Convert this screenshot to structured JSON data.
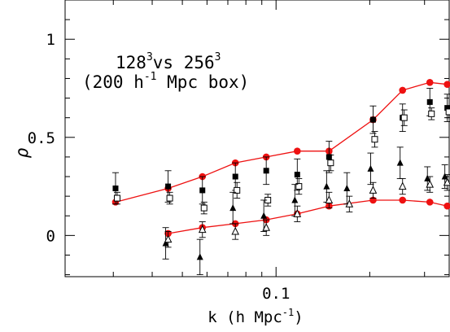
{
  "chart_data": {
    "type": "scatter",
    "x_scale": "log",
    "xlabel": "k (h Mpc",
    "xlabel_sup": "-1",
    "xlabel_end": ")",
    "ylabel": "ρ",
    "xlim": [
      0.021,
      0.36
    ],
    "ylim": [
      -0.21,
      1.2
    ],
    "x_ticks": [
      {
        "value": 0.1,
        "label": "0.1"
      }
    ],
    "y_ticks": [
      {
        "value": 0,
        "label": "0"
      },
      {
        "value": 0.5,
        "label": "0.5"
      },
      {
        "value": 1,
        "label": "1"
      }
    ],
    "annotation": {
      "line1": {
        "base1": "128",
        "sup1": "3",
        "mid": "vs 256",
        "sup2": "3"
      },
      "line2": {
        "before": "(200 h",
        "sup": "-1",
        "after": " Mpc box)"
      }
    },
    "colors": {
      "axis": "#000000",
      "red_series": "#ee1111",
      "black_markers": "#000000"
    },
    "series": [
      {
        "marker": "red-circle-line",
        "x": [
          0.0305,
          0.045,
          0.058,
          0.074,
          0.093,
          0.117,
          0.148,
          0.205,
          0.255,
          0.312,
          0.355
        ],
        "y": [
          0.17,
          0.24,
          0.3,
          0.37,
          0.4,
          0.43,
          0.43,
          0.59,
          0.74,
          0.78,
          0.77
        ]
      },
      {
        "marker": "red-circle-line",
        "x": [
          0.045,
          0.058,
          0.074,
          0.093,
          0.117,
          0.148,
          0.205,
          0.255,
          0.312,
          0.355
        ],
        "y": [
          0.01,
          0.04,
          0.06,
          0.08,
          0.11,
          0.15,
          0.18,
          0.18,
          0.17,
          0.15
        ]
      },
      {
        "marker": "filled-square",
        "x": [
          0.0305,
          0.045,
          0.058,
          0.074,
          0.093,
          0.117,
          0.148,
          0.205,
          0.255,
          0.312,
          0.355
        ],
        "y": [
          0.24,
          0.25,
          0.23,
          0.3,
          0.33,
          0.31,
          0.4,
          0.59,
          0.6,
          0.68,
          0.65
        ],
        "err": [
          0.08,
          0.08,
          0.07,
          0.07,
          0.07,
          0.08,
          0.08,
          0.07,
          0.07,
          0.07,
          0.07
        ]
      },
      {
        "marker": "open-square",
        "x": [
          0.0305,
          0.045,
          0.058,
          0.074,
          0.093,
          0.117,
          0.148,
          0.205,
          0.255,
          0.312,
          0.355
        ],
        "y": [
          0.19,
          0.19,
          0.14,
          0.23,
          0.18,
          0.25,
          0.37,
          0.49,
          0.6,
          0.62,
          0.63
        ],
        "err": [
          0.03,
          0.03,
          0.03,
          0.04,
          0.03,
          0.04,
          0.04,
          0.04,
          0.04,
          0.03,
          0.03
        ]
      },
      {
        "marker": "filled-triangle",
        "x": [
          0.045,
          0.058,
          0.074,
          0.093,
          0.117,
          0.148,
          0.172,
          0.205,
          0.255,
          0.312,
          0.355
        ],
        "y": [
          -0.04,
          -0.11,
          0.14,
          0.1,
          0.18,
          0.25,
          0.24,
          0.34,
          0.37,
          0.29,
          0.3
        ],
        "err": [
          0.08,
          0.09,
          0.08,
          0.08,
          0.08,
          0.08,
          0.08,
          0.08,
          0.08,
          0.06,
          0.06
        ]
      },
      {
        "marker": "open-triangle",
        "x": [
          0.045,
          0.058,
          0.074,
          0.093,
          0.117,
          0.148,
          0.172,
          0.205,
          0.255,
          0.312,
          0.355
        ],
        "y": [
          -0.02,
          0.03,
          0.02,
          0.04,
          0.11,
          0.18,
          0.16,
          0.23,
          0.25,
          0.26,
          0.27
        ],
        "err": [
          0.04,
          0.04,
          0.04,
          0.04,
          0.04,
          0.04,
          0.04,
          0.04,
          0.04,
          0.04,
          0.04
        ]
      }
    ]
  }
}
